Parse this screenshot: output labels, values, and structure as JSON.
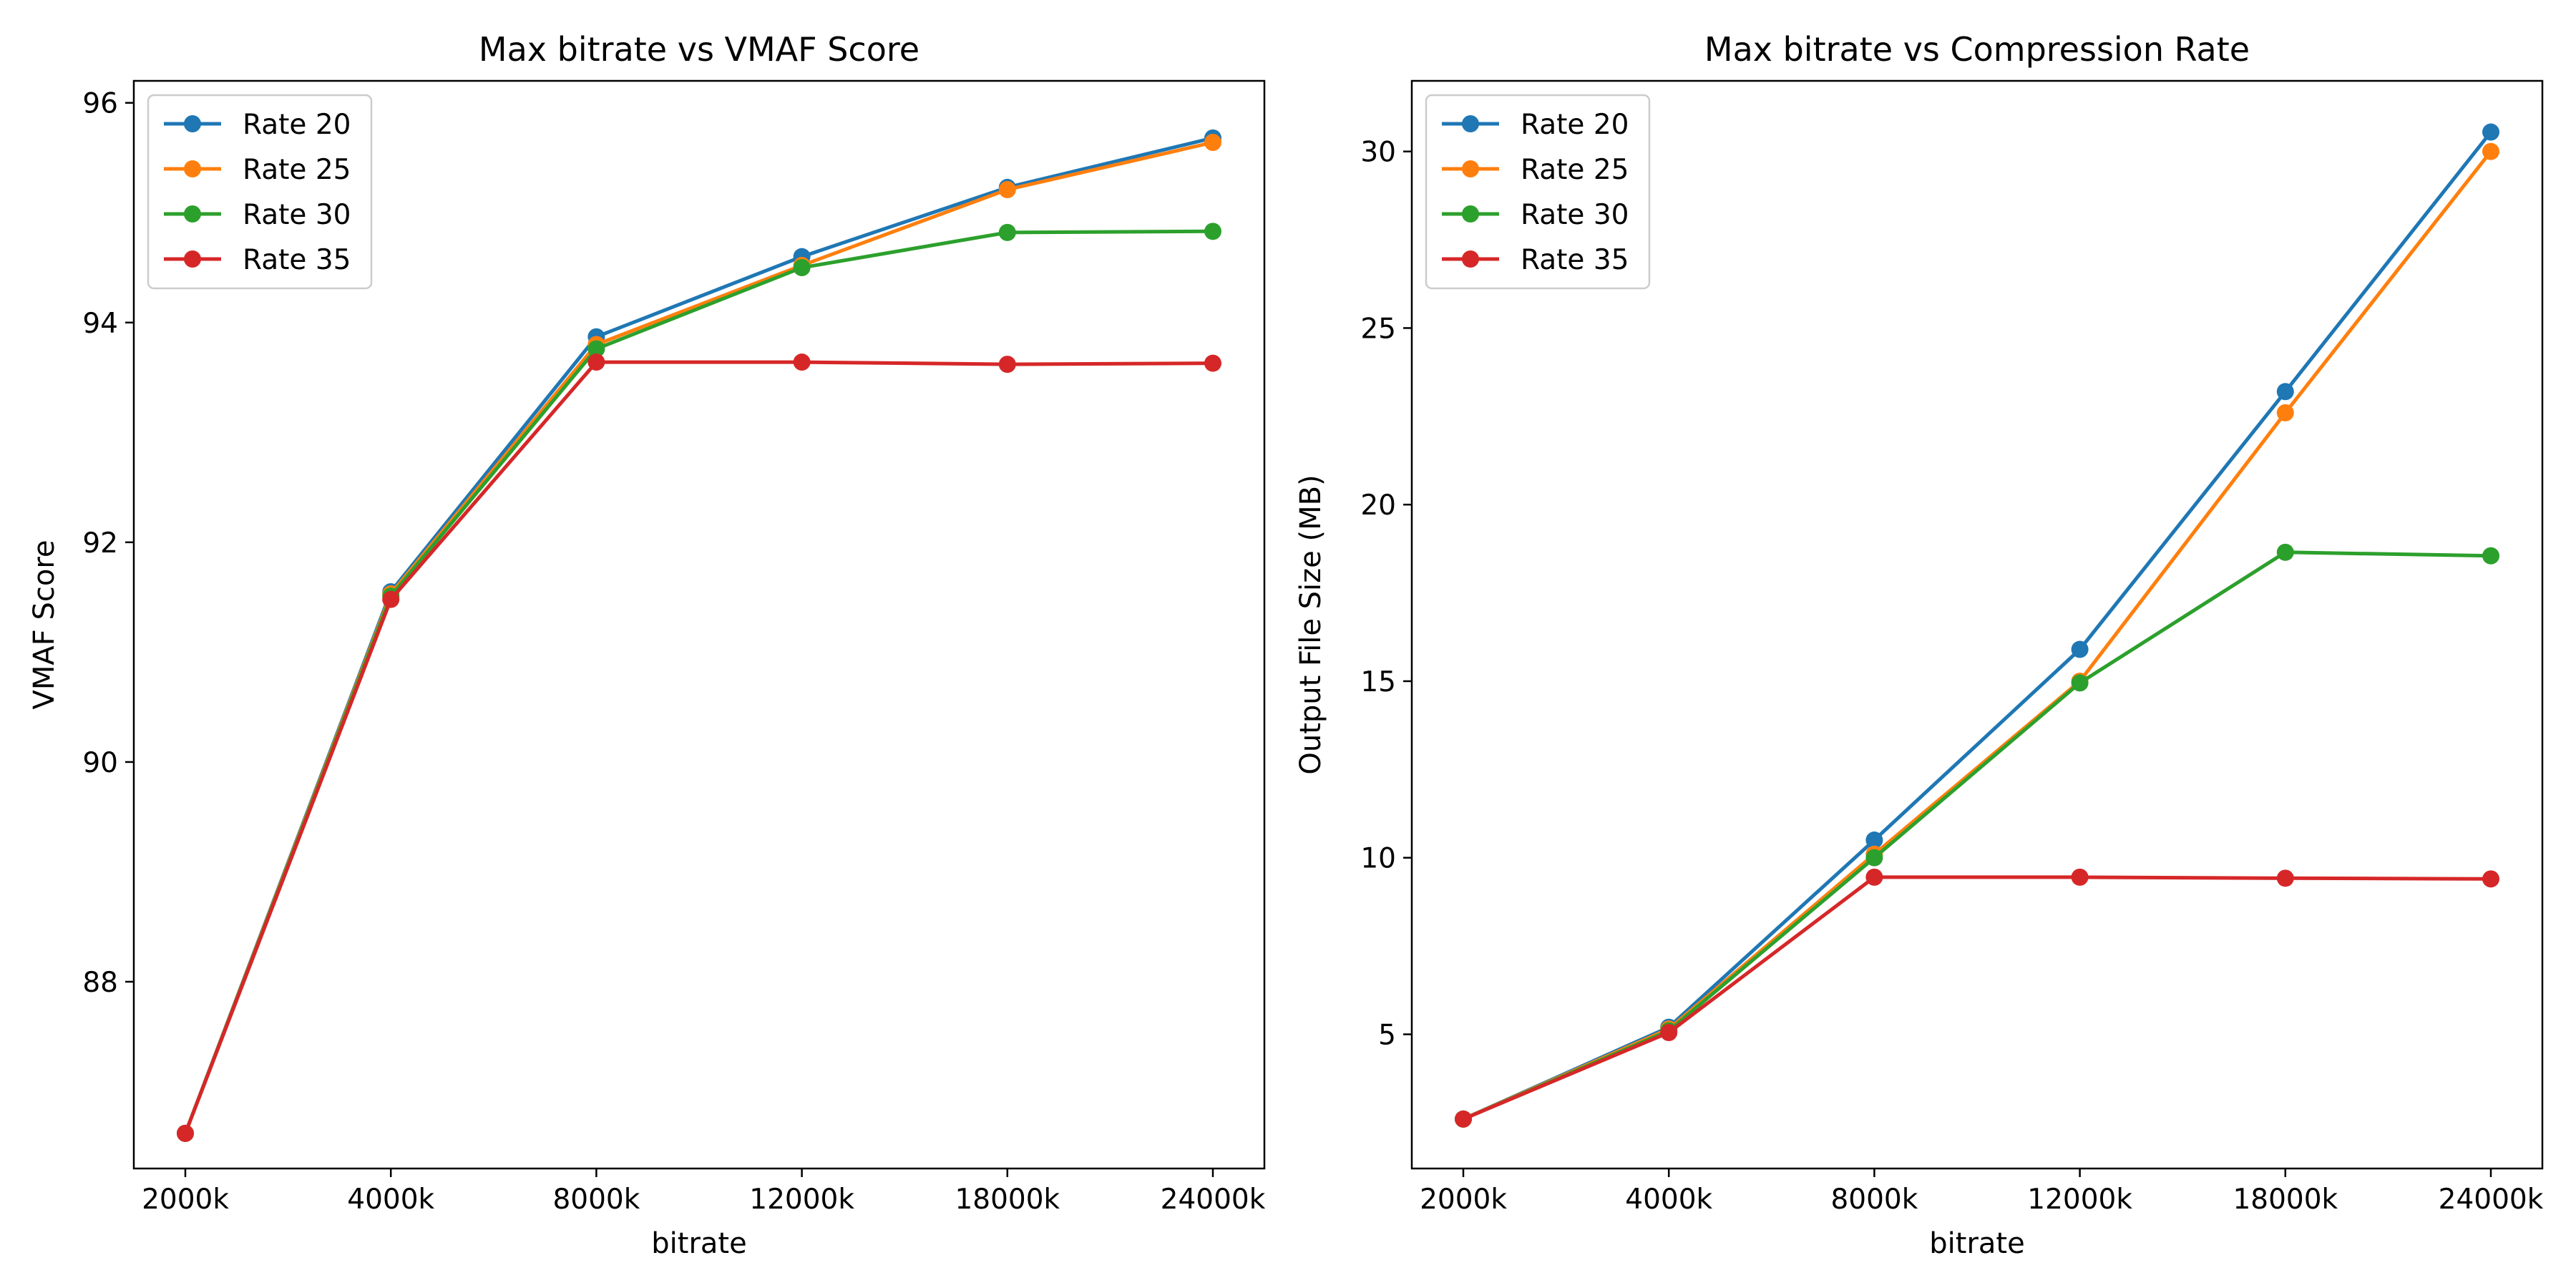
{
  "chart_data": [
    {
      "type": "line",
      "title": "Max bitrate vs VMAF Score",
      "xlabel": "bitrate",
      "ylabel": "VMAF Score",
      "categories": [
        "2000k",
        "4000k",
        "8000k",
        "12000k",
        "18000k",
        "24000k"
      ],
      "ylim": [
        86.3,
        96.2
      ],
      "yticks": [
        "88",
        "90",
        "92",
        "94",
        "96"
      ],
      "grid": false,
      "legend_position": "top-left",
      "series": [
        {
          "name": "Rate 20",
          "color": "#1f77b4",
          "values": [
            86.62,
            91.55,
            93.87,
            94.6,
            95.23,
            95.68
          ]
        },
        {
          "name": "Rate 25",
          "color": "#ff7f0e",
          "values": [
            86.62,
            91.53,
            93.8,
            94.52,
            95.21,
            95.64
          ]
        },
        {
          "name": "Rate 30",
          "color": "#2ca02c",
          "values": [
            86.62,
            91.51,
            93.76,
            94.5,
            94.82,
            94.83
          ]
        },
        {
          "name": "Rate 35",
          "color": "#d62728",
          "values": [
            86.62,
            91.48,
            93.64,
            93.64,
            93.62,
            93.63
          ]
        }
      ]
    },
    {
      "type": "line",
      "title": "Max bitrate vs Compression Rate",
      "xlabel": "bitrate",
      "ylabel": "Output File Size (MB)",
      "categories": [
        "2000k",
        "4000k",
        "8000k",
        "12000k",
        "18000k",
        "24000k"
      ],
      "ylim": [
        1.2,
        32.0
      ],
      "yticks": [
        "5",
        "10",
        "15",
        "20",
        "25",
        "30"
      ],
      "grid": false,
      "legend_position": "top-left",
      "series": [
        {
          "name": "Rate 20",
          "color": "#1f77b4",
          "values": [
            2.6,
            5.2,
            10.5,
            15.9,
            23.2,
            30.55
          ]
        },
        {
          "name": "Rate 25",
          "color": "#ff7f0e",
          "values": [
            2.6,
            5.15,
            10.1,
            15.0,
            22.6,
            30.0
          ]
        },
        {
          "name": "Rate 30",
          "color": "#2ca02c",
          "values": [
            2.6,
            5.1,
            10.0,
            14.95,
            18.65,
            18.55
          ]
        },
        {
          "name": "Rate 35",
          "color": "#d62728",
          "values": [
            2.6,
            5.05,
            9.45,
            9.45,
            9.42,
            9.4
          ]
        }
      ]
    }
  ]
}
